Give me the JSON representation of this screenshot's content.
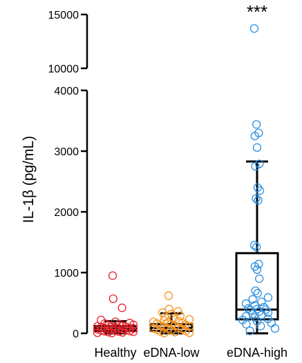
{
  "chart_data": {
    "type": "box-scatter",
    "ylabel": "IL-1β (pg/mL)",
    "y_axis_break": true,
    "y_segments": [
      {
        "range": [
          0,
          4000
        ],
        "ticks": [
          0,
          1000,
          2000,
          3000,
          4000
        ]
      },
      {
        "range": [
          10000,
          15000
        ],
        "ticks": [
          10000,
          15000
        ]
      }
    ],
    "categories": [
      "Healthy",
      "eDNA-low",
      "eDNA-high"
    ],
    "annotations": [
      {
        "category": "eDNA-high",
        "text": "***"
      }
    ],
    "series": [
      {
        "category": "Healthy",
        "color": "#e8202a",
        "box": {
          "whisker_low": 0,
          "q1": 40,
          "median": 80,
          "q3": 120,
          "whisker_high": 200
        },
        "points": [
          950,
          570,
          420,
          220,
          190,
          170,
          160,
          150,
          140,
          130,
          120,
          115,
          110,
          105,
          100,
          95,
          90,
          85,
          80,
          80,
          75,
          70,
          65,
          60,
          55,
          50,
          45,
          40,
          35,
          30,
          25,
          20,
          15,
          10,
          5
        ]
      },
      {
        "category": "eDNA-low",
        "color": "#f5921e",
        "box": {
          "whisker_low": 0,
          "q1": 40,
          "median": 90,
          "q3": 150,
          "whisker_high": 330
        },
        "points": [
          620,
          400,
          360,
          340,
          320,
          290,
          270,
          250,
          230,
          210,
          200,
          190,
          180,
          170,
          160,
          150,
          140,
          130,
          120,
          110,
          100,
          90,
          85,
          80,
          70,
          60,
          50,
          40,
          30,
          20,
          10,
          5
        ]
      },
      {
        "category": "eDNA-high",
        "color": "#2b8fe0",
        "box": {
          "whisker_low": 0,
          "q1": 230,
          "median": 390,
          "q3": 1320,
          "whisker_high": 2830
        },
        "points": [
          13700,
          3440,
          3300,
          3250,
          3060,
          2790,
          2750,
          2400,
          2350,
          2220,
          2190,
          1450,
          1420,
          1140,
          1100,
          1050,
          900,
          700,
          660,
          590,
          560,
          520,
          490,
          460,
          430,
          410,
          400,
          390,
          380,
          360,
          340,
          320,
          300,
          280,
          260,
          240,
          220,
          200,
          170,
          150,
          120,
          80,
          40
        ]
      }
    ]
  }
}
